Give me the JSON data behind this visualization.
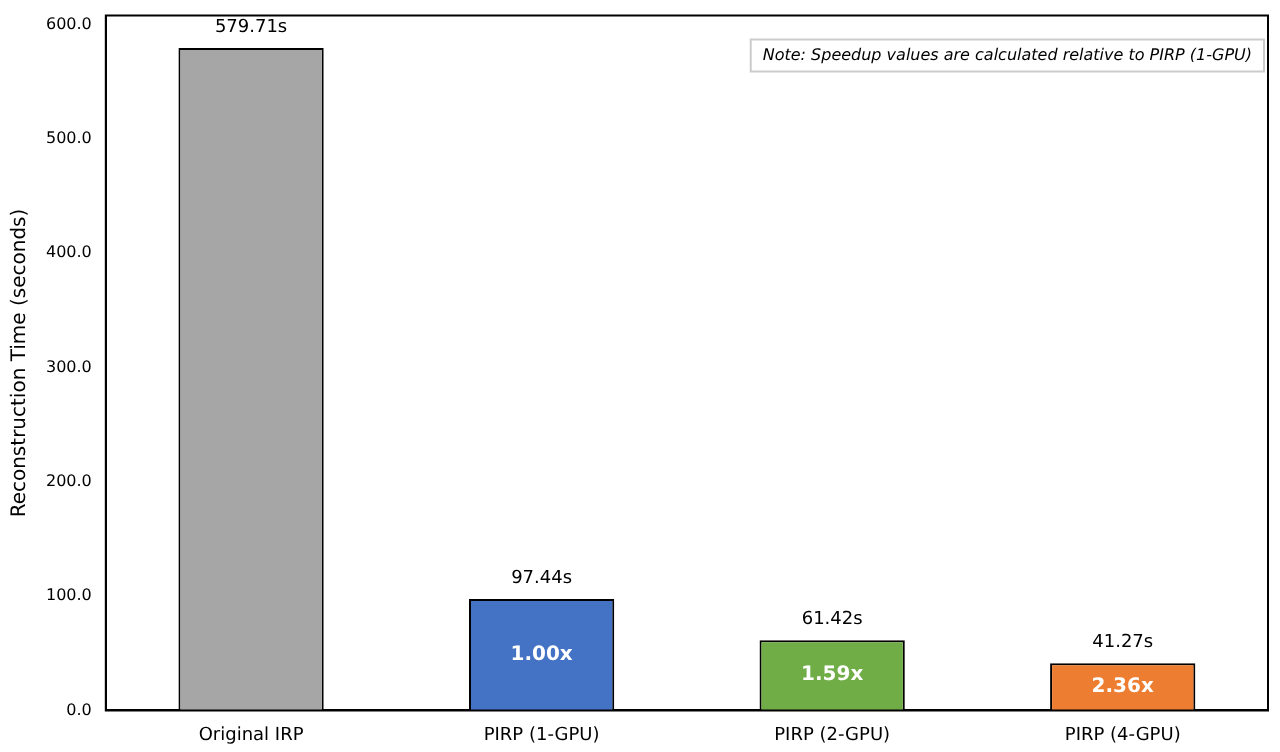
{
  "chart_data": {
    "type": "bar",
    "ylabel": "Reconstruction Time (seconds)",
    "categories": [
      "Original IRP",
      "PIRP (1-GPU)",
      "PIRP (2-GPU)",
      "PIRP (4-GPU)"
    ],
    "values": [
      579.71,
      97.44,
      61.42,
      41.27
    ],
    "colors": [
      "#a6a6a6",
      "#4472c4",
      "#70ad47",
      "#ed7d31"
    ],
    "value_labels": [
      "579.71s",
      "97.44s",
      "61.42s",
      "41.27s"
    ],
    "ylim": [
      0,
      608
    ],
    "yticks": [
      {
        "value": 0,
        "label": "0.0"
      },
      {
        "value": 100,
        "label": "100.0"
      },
      {
        "value": 200,
        "label": "200.0"
      },
      {
        "value": 300,
        "label": "300.0"
      },
      {
        "value": 400,
        "label": "400.0"
      },
      {
        "value": 500,
        "label": "500.0"
      },
      {
        "value": 600,
        "label": "600.0"
      }
    ],
    "grid": false,
    "legend": false,
    "annotations": [
      "Note: Speedup values are calculated relative to PIRP (1-GPU)",
      "1.00x",
      "1.59x",
      "2.36x"
    ]
  }
}
